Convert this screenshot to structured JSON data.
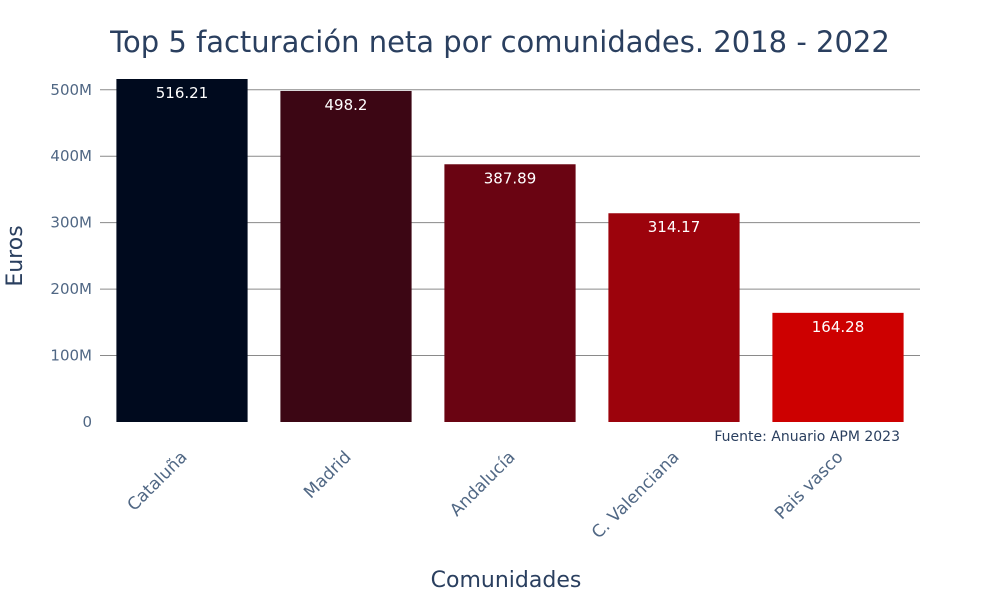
{
  "chart_data": {
    "type": "bar",
    "title": "Top 5 facturación neta por comunidades. 2018 - 2022",
    "xlabel": "Comunidades",
    "ylabel": "Euros",
    "annotation": "Fuente: Anuario APM 2023",
    "categories": [
      "Cataluña",
      "Madrid",
      "Andalucía",
      "C. Valenciana",
      "Pais vasco"
    ],
    "values": [
      516.21,
      498.2,
      387.89,
      314.17,
      164.28
    ],
    "value_labels": [
      "516.21",
      "498.2",
      "387.89",
      "314.17",
      "164.28"
    ],
    "bar_colors": [
      "#000a1e",
      "#3c0614",
      "#6a0412",
      "#9c030c",
      "#cd0000"
    ],
    "y_ticks": [
      0,
      100,
      200,
      300,
      400,
      500
    ],
    "y_tick_labels": [
      "0",
      "100M",
      "200M",
      "300M",
      "400M",
      "500M"
    ],
    "ylim": [
      0,
      516.21
    ],
    "grid": true,
    "colors": {
      "title": "#2a3f5f",
      "gridline": "#8a8a8a",
      "bar_label": "#ffffff"
    }
  }
}
